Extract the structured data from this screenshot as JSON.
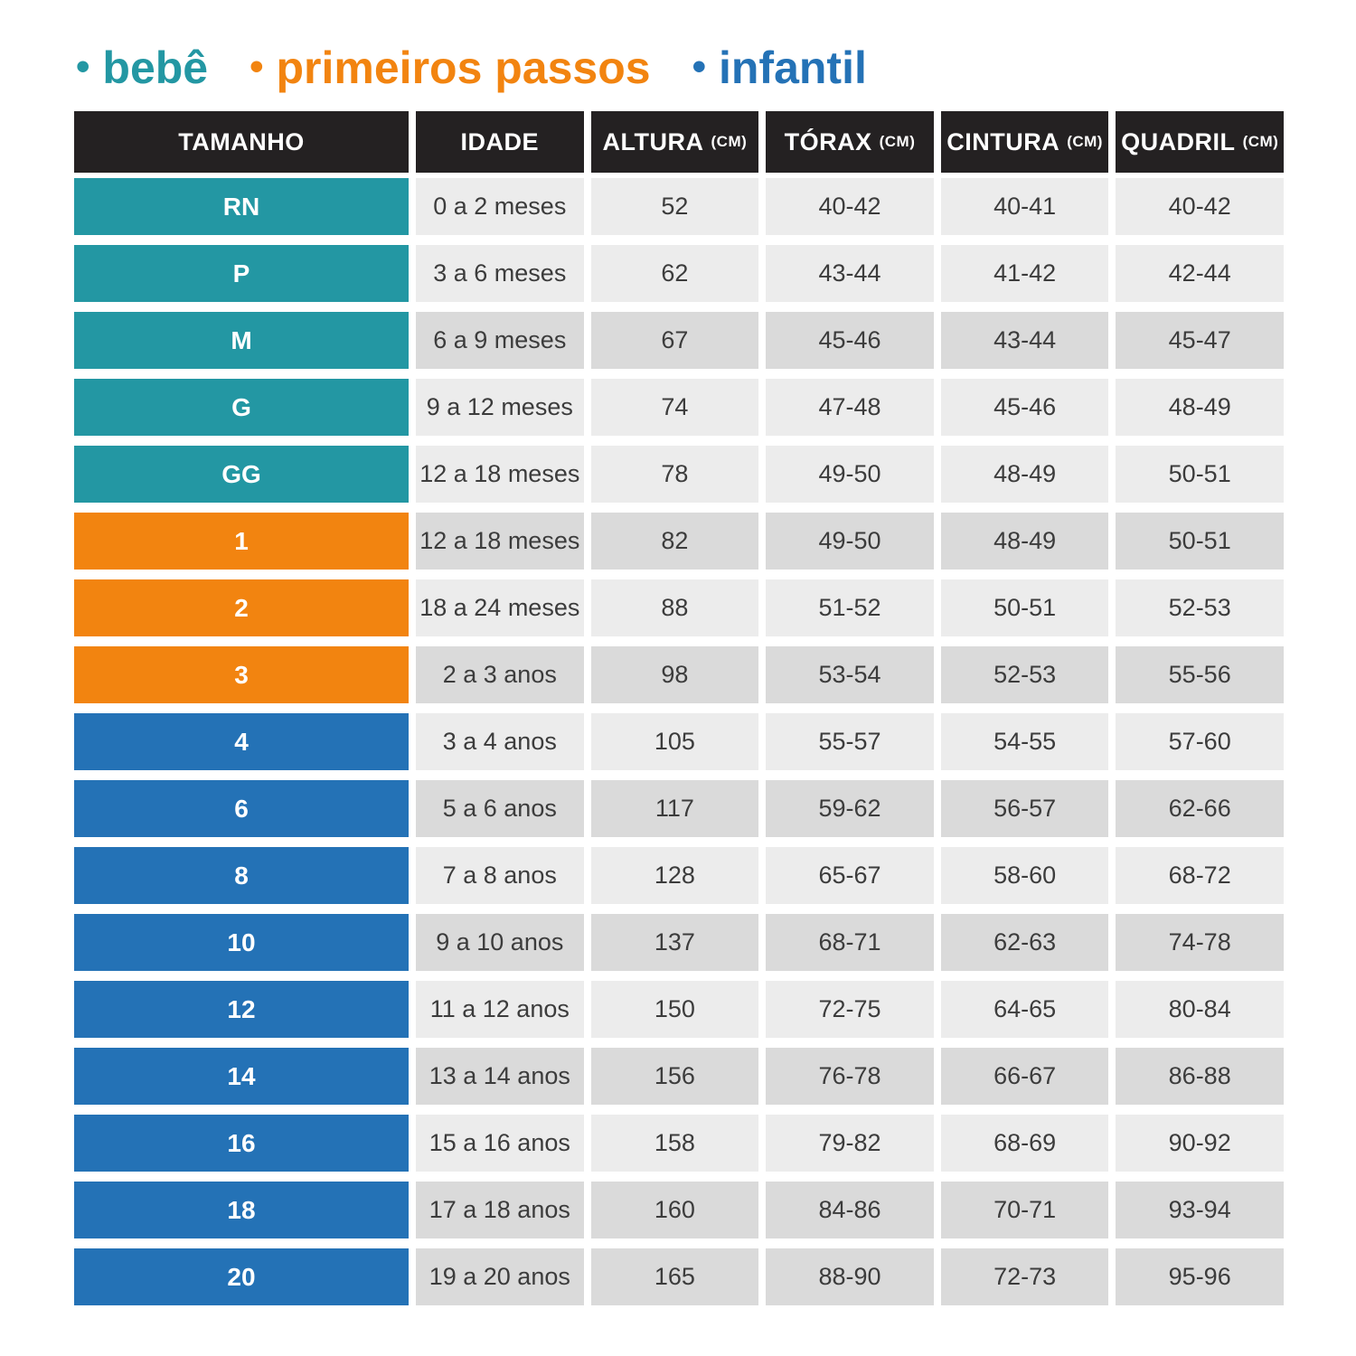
{
  "legend": {
    "bullet": "•",
    "items": [
      {
        "label": "bebê",
        "category": "bebe"
      },
      {
        "label": "primeiros passos",
        "category": "primeiros_passos"
      },
      {
        "label": "infantil",
        "category": "infantil"
      }
    ]
  },
  "table": {
    "headers": [
      {
        "label": "TAMANHO",
        "unit": ""
      },
      {
        "label": "IDADE",
        "unit": ""
      },
      {
        "label": "ALTURA",
        "unit": "(CM)"
      },
      {
        "label": "TÓRAX",
        "unit": "(CM)"
      },
      {
        "label": "CINTURA",
        "unit": "(CM)"
      },
      {
        "label": "QUADRIL",
        "unit": "(CM)"
      }
    ],
    "rows": [
      {
        "size": "RN",
        "category": "bebe",
        "age": "0 a 2 meses",
        "height": "52",
        "chest": "40-42",
        "waist": "40-41",
        "hip": "40-42",
        "shade": "light"
      },
      {
        "size": "P",
        "category": "bebe",
        "age": "3 a 6 meses",
        "height": "62",
        "chest": "43-44",
        "waist": "41-42",
        "hip": "42-44",
        "shade": "light"
      },
      {
        "size": "M",
        "category": "bebe",
        "age": "6 a 9 meses",
        "height": "67",
        "chest": "45-46",
        "waist": "43-44",
        "hip": "45-47",
        "shade": "dark"
      },
      {
        "size": "G",
        "category": "bebe",
        "age": "9 a 12 meses",
        "height": "74",
        "chest": "47-48",
        "waist": "45-46",
        "hip": "48-49",
        "shade": "light"
      },
      {
        "size": "GG",
        "category": "bebe",
        "age": "12 a 18 meses",
        "height": "78",
        "chest": "49-50",
        "waist": "48-49",
        "hip": "50-51",
        "shade": "light"
      },
      {
        "size": "1",
        "category": "primeiros_passos",
        "age": "12 a 18 meses",
        "height": "82",
        "chest": "49-50",
        "waist": "48-49",
        "hip": "50-51",
        "shade": "dark"
      },
      {
        "size": "2",
        "category": "primeiros_passos",
        "age": "18 a 24 meses",
        "height": "88",
        "chest": "51-52",
        "waist": "50-51",
        "hip": "52-53",
        "shade": "light"
      },
      {
        "size": "3",
        "category": "primeiros_passos",
        "age": "2 a 3 anos",
        "height": "98",
        "chest": "53-54",
        "waist": "52-53",
        "hip": "55-56",
        "shade": "dark"
      },
      {
        "size": "4",
        "category": "infantil",
        "age": "3 a 4 anos",
        "height": "105",
        "chest": "55-57",
        "waist": "54-55",
        "hip": "57-60",
        "shade": "light"
      },
      {
        "size": "6",
        "category": "infantil",
        "age": "5 a 6 anos",
        "height": "117",
        "chest": "59-62",
        "waist": "56-57",
        "hip": "62-66",
        "shade": "dark"
      },
      {
        "size": "8",
        "category": "infantil",
        "age": "7 a 8 anos",
        "height": "128",
        "chest": "65-67",
        "waist": "58-60",
        "hip": "68-72",
        "shade": "light"
      },
      {
        "size": "10",
        "category": "infantil",
        "age": "9 a 10 anos",
        "height": "137",
        "chest": "68-71",
        "waist": "62-63",
        "hip": "74-78",
        "shade": "dark"
      },
      {
        "size": "12",
        "category": "infantil",
        "age": "11 a 12 anos",
        "height": "150",
        "chest": "72-75",
        "waist": "64-65",
        "hip": "80-84",
        "shade": "light"
      },
      {
        "size": "14",
        "category": "infantil",
        "age": "13 a 14 anos",
        "height": "156",
        "chest": "76-78",
        "waist": "66-67",
        "hip": "86-88",
        "shade": "dark"
      },
      {
        "size": "16",
        "category": "infantil",
        "age": "15 a 16 anos",
        "height": "158",
        "chest": "79-82",
        "waist": "68-69",
        "hip": "90-92",
        "shade": "light"
      },
      {
        "size": "18",
        "category": "infantil",
        "age": "17 a 18 anos",
        "height": "160",
        "chest": "84-86",
        "waist": "70-71",
        "hip": "93-94",
        "shade": "dark"
      },
      {
        "size": "20",
        "category": "infantil",
        "age": "19 a 20 anos",
        "height": "165",
        "chest": "88-90",
        "waist": "72-73",
        "hip": "95-96",
        "shade": "dark"
      }
    ]
  },
  "colors": {
    "bebe": "#2397A3",
    "primeiros_passos": "#F28410",
    "infantil": "#2472B6",
    "header_bg": "#242122",
    "row_light": "#ECECEC",
    "row_dark": "#DADADA",
    "cell_text": "#3C3C3C"
  }
}
